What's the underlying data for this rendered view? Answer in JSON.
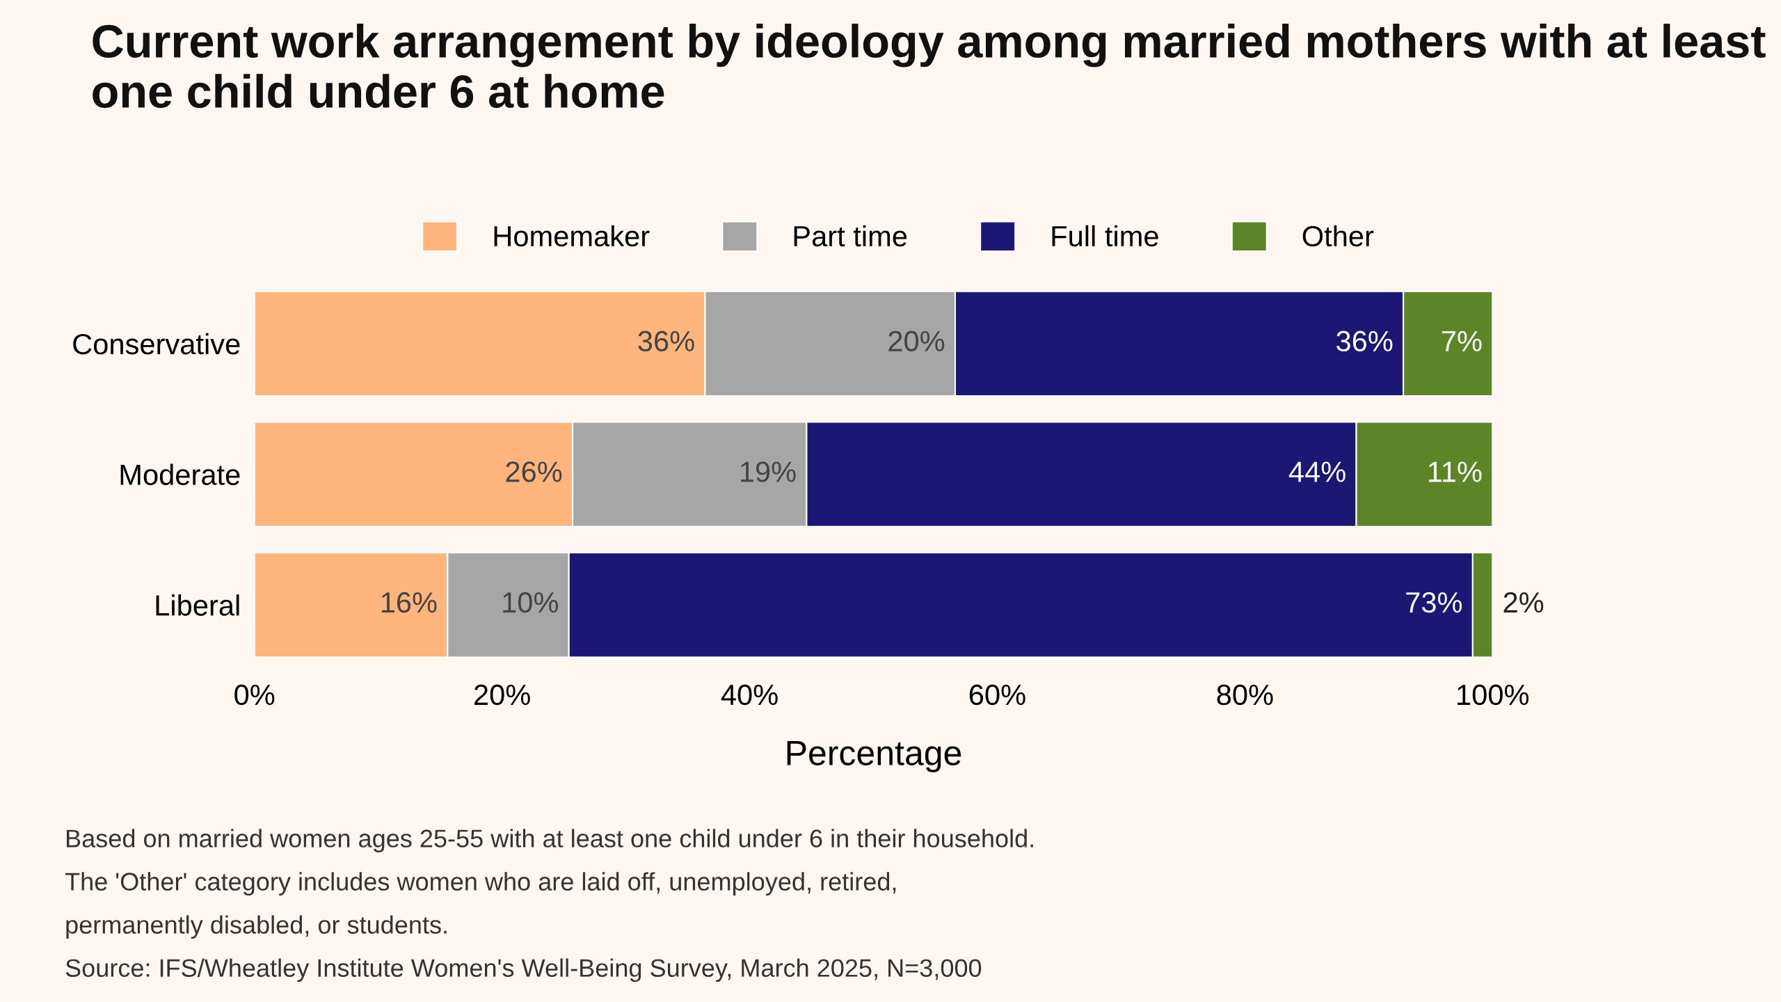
{
  "chart_data": {
    "type": "bar",
    "orientation": "horizontal",
    "stacked": true,
    "title": "Current work arrangement by ideology among married mothers with at least one child under 6 at home",
    "xlabel": "Percentage",
    "categories": [
      "Conservative",
      "Moderate",
      "Liberal"
    ],
    "series": [
      {
        "name": "Homemaker",
        "color": "#ffb57c",
        "values": [
          36.4,
          25.7,
          15.6
        ],
        "value_labels": [
          "36%",
          "26%",
          "16%"
        ]
      },
      {
        "name": "Part time",
        "color": "#a6a6a6",
        "values": [
          20.2,
          18.9,
          9.8
        ],
        "value_labels": [
          "20%",
          "19%",
          "10%"
        ]
      },
      {
        "name": "Full time",
        "color": "#1c1675",
        "values": [
          36.2,
          44.4,
          73.0
        ],
        "value_labels": [
          "36%",
          "44%",
          "73%"
        ]
      },
      {
        "name": "Other",
        "color": "#5b8526",
        "values": [
          7.2,
          11.0,
          1.6
        ],
        "value_labels": [
          "7%",
          "11%",
          "2%"
        ]
      }
    ],
    "xlim": [
      0,
      100
    ],
    "xticks": [
      {
        "value": 0,
        "label": "0%"
      },
      {
        "value": 20,
        "label": "20%"
      },
      {
        "value": 40,
        "label": "40%"
      },
      {
        "value": 60,
        "label": "60%"
      },
      {
        "value": 80,
        "label": "80%"
      },
      {
        "value": 100,
        "label": "100%"
      }
    ],
    "legend": "top",
    "grid": false,
    "annotations": [
      "Based on married women ages 25-55 with at least one child under 6 in their household.",
      "The 'Other' category includes women who are laid off, unemployed, retired,",
      "permanently disabled, or students.",
      "Source: IFS/Wheatley Institute Women's Well-Being Survey, March 2025, N=3,000"
    ]
  }
}
